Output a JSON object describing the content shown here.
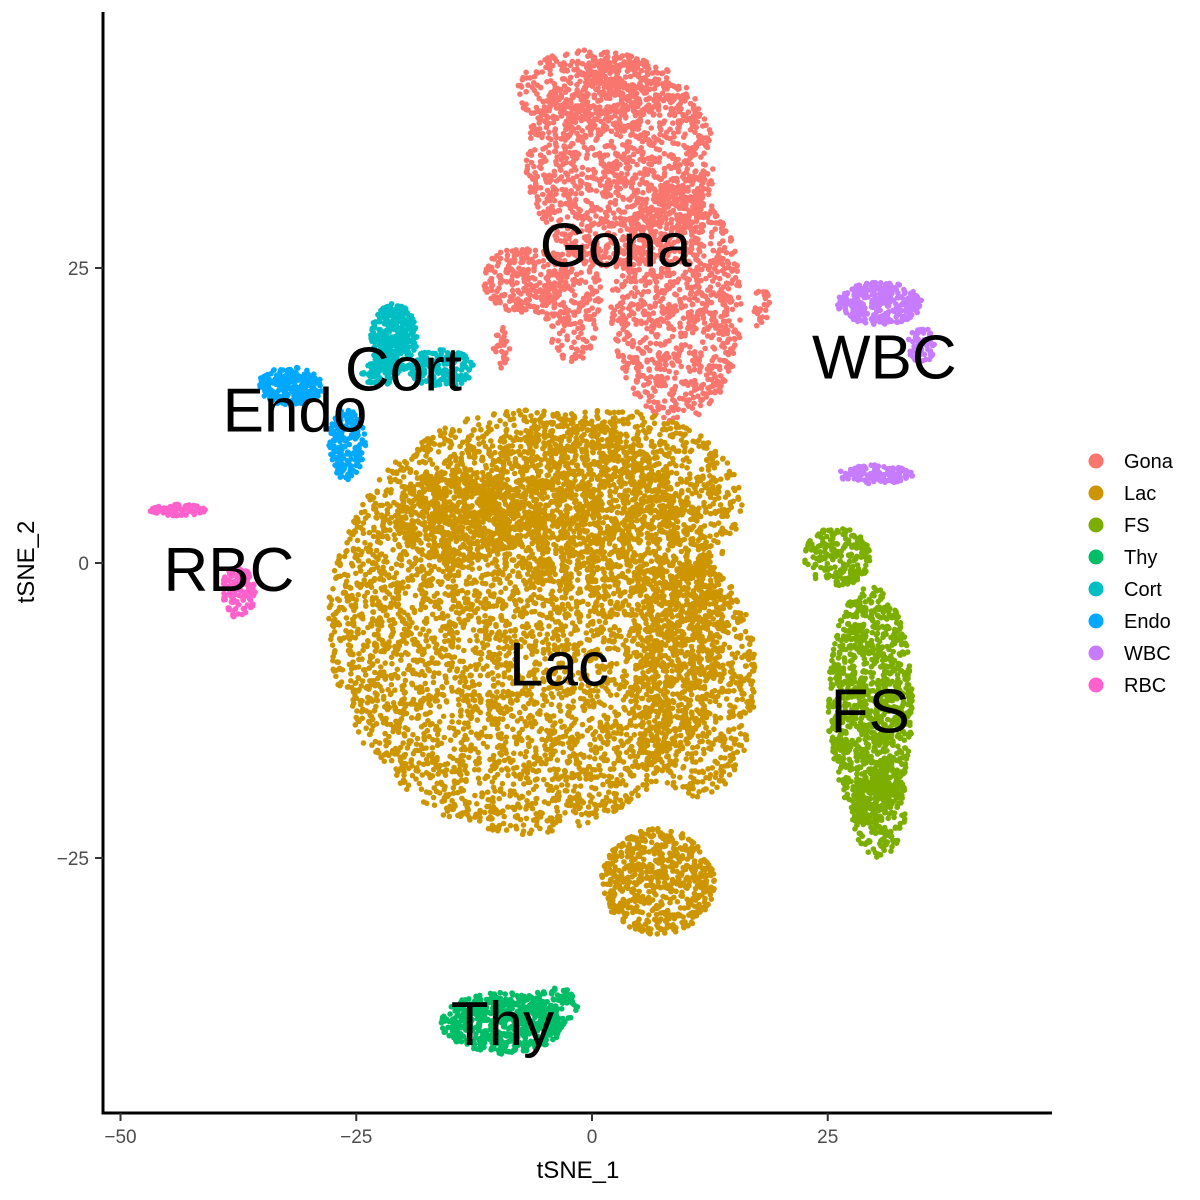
{
  "chart_data": {
    "type": "scatter",
    "title": "",
    "xlabel": "tSNE_1",
    "ylabel": "tSNE_2",
    "xlim": [
      -51,
      48
    ],
    "ylim": [
      -46.5,
      46
    ],
    "x_ticks": [
      -50,
      -25,
      0,
      25
    ],
    "x_tick_labels": [
      "−50",
      "−25",
      "0",
      "25"
    ],
    "y_ticks": [
      -25,
      0,
      25
    ],
    "y_tick_labels": [
      "−25",
      "0",
      "25"
    ],
    "grid": false,
    "legend_position": "right",
    "series": [
      {
        "name": "Gona",
        "color": "#F8766D",
        "label": "Gona",
        "label_pos": [
          2.5,
          27
        ],
        "regions": [
          {
            "cx": 3,
            "cy": 34,
            "rx": 10,
            "ry": 9,
            "n": 1300
          },
          {
            "cx": 9,
            "cy": 22,
            "rx": 7,
            "ry": 10,
            "n": 1000
          },
          {
            "cx": -7,
            "cy": 24,
            "rx": 4.5,
            "ry": 3,
            "n": 260
          },
          {
            "cx": -2,
            "cy": 22,
            "rx": 3,
            "ry": 5,
            "n": 200
          },
          {
            "cx": 0,
            "cy": 40,
            "rx": 8,
            "ry": 3.5,
            "n": 350
          },
          {
            "cx": 18,
            "cy": 21.5,
            "rx": 0.9,
            "ry": 1.8,
            "n": 25
          },
          {
            "cx": -9.5,
            "cy": 18,
            "rx": 1,
            "ry": 2,
            "n": 25
          }
        ]
      },
      {
        "name": "Lac",
        "color": "#CD9600",
        "label": "Lac",
        "label_pos": [
          -3.5,
          -8.5
        ],
        "regions": [
          {
            "cx": -7,
            "cy": -5,
            "rx": 21,
            "ry": 18,
            "n": 4600
          },
          {
            "cx": 2,
            "cy": 5,
            "rx": 14,
            "ry": 8,
            "n": 1400
          },
          {
            "cx": 7,
            "cy": -27,
            "rx": 6,
            "ry": 4.5,
            "n": 600
          },
          {
            "cx": 11,
            "cy": -10,
            "rx": 6.5,
            "ry": 10,
            "n": 800
          },
          {
            "cx": -14,
            "cy": 4,
            "rx": 7,
            "ry": 4,
            "n": 500
          }
        ]
      },
      {
        "name": "FS",
        "color": "#7CAE00",
        "label": "FS",
        "label_pos": [
          29.5,
          -12.5
        ],
        "regions": [
          {
            "cx": 29.5,
            "cy": -12,
            "rx": 4.5,
            "ry": 10,
            "n": 1100
          },
          {
            "cx": 26,
            "cy": 0.5,
            "rx": 3.5,
            "ry": 2.5,
            "n": 200
          },
          {
            "cx": 30.5,
            "cy": -21,
            "rx": 3,
            "ry": 4,
            "n": 220
          }
        ]
      },
      {
        "name": "Thy",
        "color": "#00BE67",
        "label": "Thy",
        "label_pos": [
          -9.5,
          -39
        ],
        "regions": [
          {
            "cx": -9.5,
            "cy": -39,
            "rx": 6.5,
            "ry": 2.6,
            "n": 560
          },
          {
            "cx": -4,
            "cy": -37.5,
            "rx": 2.5,
            "ry": 1.6,
            "n": 80
          }
        ]
      },
      {
        "name": "Cort",
        "color": "#00BFC4",
        "label": "Cort",
        "label_pos": [
          -20,
          16.5
        ],
        "regions": [
          {
            "cx": -21,
            "cy": 19,
            "rx": 2.5,
            "ry": 3,
            "n": 320
          },
          {
            "cx": -16,
            "cy": 16.5,
            "rx": 3.5,
            "ry": 1.6,
            "n": 160
          },
          {
            "cx": -22.5,
            "cy": 16,
            "rx": 2,
            "ry": 1,
            "n": 60
          }
        ]
      },
      {
        "name": "Endo",
        "color": "#00A9FF",
        "label": "Endo",
        "label_pos": [
          -31.5,
          13
        ],
        "regions": [
          {
            "cx": -32,
            "cy": 15,
            "rx": 3.5,
            "ry": 1.6,
            "n": 260
          },
          {
            "cx": -26,
            "cy": 10,
            "rx": 2,
            "ry": 3,
            "n": 180
          }
        ]
      },
      {
        "name": "WBC",
        "color": "#C77CFF",
        "label": "WBC",
        "label_pos": [
          31,
          17.5
        ],
        "regions": [
          {
            "cx": 30.5,
            "cy": 22,
            "rx": 4.5,
            "ry": 1.8,
            "n": 300
          },
          {
            "cx": 35,
            "cy": 18.5,
            "rx": 1.5,
            "ry": 1.5,
            "n": 60
          },
          {
            "cx": 30,
            "cy": 7.5,
            "rx": 4,
            "ry": 0.8,
            "n": 120
          }
        ]
      },
      {
        "name": "RBC",
        "color": "#FF61CC",
        "label": "RBC",
        "label_pos": [
          -38.5,
          -0.5
        ],
        "regions": [
          {
            "cx": -37.5,
            "cy": -2.5,
            "rx": 1.8,
            "ry": 2.2,
            "n": 130
          },
          {
            "cx": -44,
            "cy": 4.5,
            "rx": 3,
            "ry": 0.5,
            "n": 70
          }
        ]
      }
    ]
  }
}
